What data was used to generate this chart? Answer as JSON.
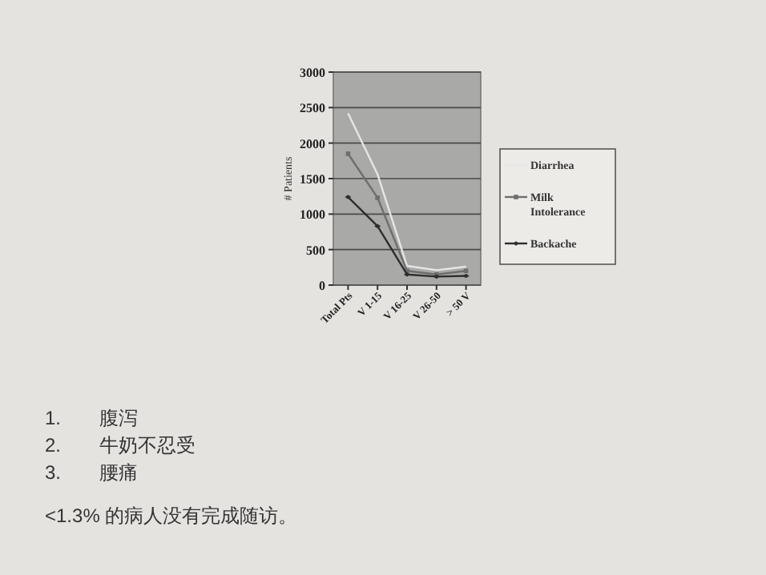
{
  "chart_data": {
    "type": "line",
    "ylabel": "# Patients",
    "categories": [
      "Total Pts",
      "V 1-15",
      "V 16-25",
      "V 26-50",
      "> 50 V"
    ],
    "series": [
      {
        "name": "Diarrhea",
        "color": "#e6e6e6",
        "marker": "none",
        "values": [
          2420,
          1560,
          270,
          210,
          260
        ]
      },
      {
        "name": "Milk Intolerance",
        "color": "#6e6e6e",
        "marker": "square",
        "values": [
          1850,
          1230,
          200,
          150,
          200
        ]
      },
      {
        "name": "Backache",
        "color": "#2e2e2e",
        "marker": "diamond",
        "values": [
          1240,
          830,
          150,
          120,
          130
        ]
      }
    ],
    "ylim": [
      0,
      3000
    ],
    "yticks": [
      0,
      500,
      1000,
      1500,
      2000,
      2500,
      3000
    ],
    "grid": "y",
    "legend": "right",
    "line_style": "solid",
    "annotations": [
      "1.　　腹泻",
      "2.　　牛奶不忍受",
      "3.　　腰痛",
      "<1.3% 的病人没有完成随访。"
    ]
  }
}
